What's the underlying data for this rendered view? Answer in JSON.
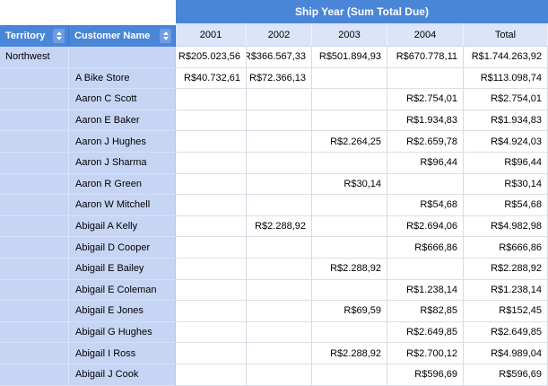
{
  "banner": {
    "title": "Ship Year (Sum Total Due)"
  },
  "columns": {
    "territory": "Territory",
    "customer": "Customer Name",
    "years": [
      "2001",
      "2002",
      "2003",
      "2004",
      "Total"
    ]
  },
  "colors": {
    "header_blue": "#4a86d8",
    "sort_button_blue": "#6f9ce4",
    "year_header_bg": "#dbe4f8",
    "group_cell_bg": "#c7d5f4",
    "grid_border": "#d6dae2"
  },
  "icons": {
    "sort": "sort-up-down-icon"
  },
  "rows": [
    {
      "territory": "Northwest",
      "customer": "",
      "values": [
        "R$205.023,56",
        "R$366.567,33",
        "R$501.894,93",
        "R$670.778,11",
        "R$1.744.263,92"
      ]
    },
    {
      "territory": "",
      "customer": "A Bike Store",
      "values": [
        "R$40.732,61",
        "R$72.366,13",
        "",
        "",
        "R$113.098,74"
      ]
    },
    {
      "territory": "",
      "customer": "Aaron C Scott",
      "values": [
        "",
        "",
        "",
        "R$2.754,01",
        "R$2.754,01"
      ]
    },
    {
      "territory": "",
      "customer": "Aaron E Baker",
      "values": [
        "",
        "",
        "",
        "R$1.934,83",
        "R$1.934,83"
      ]
    },
    {
      "territory": "",
      "customer": "Aaron J Hughes",
      "values": [
        "",
        "",
        "R$2.264,25",
        "R$2.659,78",
        "R$4.924,03"
      ]
    },
    {
      "territory": "",
      "customer": "Aaron J Sharma",
      "values": [
        "",
        "",
        "",
        "R$96,44",
        "R$96,44"
      ]
    },
    {
      "territory": "",
      "customer": "Aaron R Green",
      "values": [
        "",
        "",
        "R$30,14",
        "",
        "R$30,14"
      ]
    },
    {
      "territory": "",
      "customer": "Aaron W Mitchell",
      "values": [
        "",
        "",
        "",
        "R$54,68",
        "R$54,68"
      ]
    },
    {
      "territory": "",
      "customer": "Abigail A Kelly",
      "values": [
        "",
        "R$2.288,92",
        "",
        "R$2.694,06",
        "R$4.982,98"
      ]
    },
    {
      "territory": "",
      "customer": "Abigail D Cooper",
      "values": [
        "",
        "",
        "",
        "R$666,86",
        "R$666,86"
      ]
    },
    {
      "territory": "",
      "customer": "Abigail E Bailey",
      "values": [
        "",
        "",
        "R$2.288,92",
        "",
        "R$2.288,92"
      ]
    },
    {
      "territory": "",
      "customer": "Abigail E Coleman",
      "values": [
        "",
        "",
        "",
        "R$1.238,14",
        "R$1.238,14"
      ]
    },
    {
      "territory": "",
      "customer": "Abigail E Jones",
      "values": [
        "",
        "",
        "R$69,59",
        "R$82,85",
        "R$152,45"
      ]
    },
    {
      "territory": "",
      "customer": "Abigail G Hughes",
      "values": [
        "",
        "",
        "",
        "R$2.649,85",
        "R$2.649,85"
      ]
    },
    {
      "territory": "",
      "customer": "Abigail I Ross",
      "values": [
        "",
        "",
        "R$2.288,92",
        "R$2.700,12",
        "R$4.989,04"
      ]
    },
    {
      "territory": "",
      "customer": "Abigail J Cook",
      "values": [
        "",
        "",
        "",
        "R$596,69",
        "R$596,69"
      ]
    }
  ]
}
